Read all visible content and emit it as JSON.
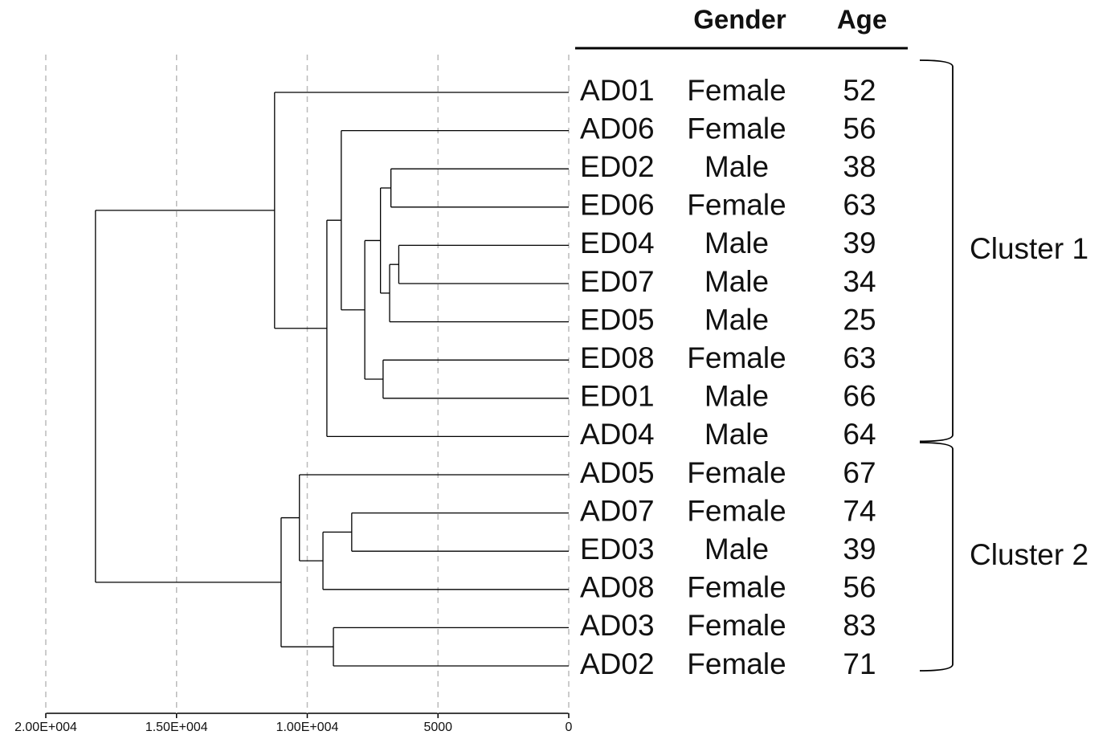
{
  "chart_data": {
    "type": "dendrogram",
    "columns": [
      "Gender",
      "Age"
    ],
    "xlim": [
      20000,
      0
    ],
    "xticks": [
      {
        "value": 20000,
        "label": "2.00E+004"
      },
      {
        "value": 15000,
        "label": "1.50E+004"
      },
      {
        "value": 10000,
        "label": "1.00E+004"
      },
      5000,
      0
    ],
    "grid": true,
    "clusters": [
      "Cluster 1",
      "Cluster 2"
    ],
    "tree": {
      "height": 18100,
      "children": [
        {
          "height": 11250,
          "children": [
            {
              "label": "AD01",
              "gender": "Female",
              "age": 52,
              "color": "#cc6a1f"
            },
            {
              "height": 9250,
              "children": [
                {
                  "height": 8700,
                  "children": [
                    {
                      "label": "AD06",
                      "gender": "Female",
                      "age": 56,
                      "color": "#cc6a1f"
                    },
                    {
                      "height": 7800,
                      "children": [
                        {
                          "height": 7200,
                          "children": [
                            {
                              "height": 6800,
                              "children": [
                                {
                                  "label": "ED02",
                                  "gender": "Male",
                                  "age": 38,
                                  "color": "#1f82d6"
                                },
                                {
                                  "label": "ED06",
                                  "gender": "Female",
                                  "age": 63,
                                  "color": "#1f82d6"
                                }
                              ]
                            },
                            {
                              "height": 6850,
                              "children": [
                                {
                                  "height": 6500,
                                  "children": [
                                    {
                                      "label": "ED04",
                                      "gender": "Male",
                                      "age": 39,
                                      "color": "#1f82d6"
                                    },
                                    {
                                      "label": "ED07",
                                      "gender": "Male",
                                      "age": 34,
                                      "color": "#1f82d6"
                                    }
                                  ]
                                },
                                {
                                  "label": "ED05",
                                  "gender": "Male",
                                  "age": 25,
                                  "color": "#1f82d6"
                                }
                              ]
                            }
                          ]
                        },
                        {
                          "height": 7100,
                          "children": [
                            {
                              "label": "ED08",
                              "gender": "Female",
                              "age": 63,
                              "color": "#1f82d6"
                            },
                            {
                              "label": "ED01",
                              "gender": "Male",
                              "age": 66,
                              "color": "#1f82d6"
                            }
                          ]
                        }
                      ]
                    }
                  ]
                },
                {
                  "label": "AD04",
                  "gender": "Male",
                  "age": 64,
                  "color": "#cc6a1f"
                }
              ]
            }
          ]
        },
        {
          "height": 11000,
          "children": [
            {
              "height": 10300,
              "children": [
                {
                  "label": "AD05",
                  "gender": "Female",
                  "age": 67,
                  "color": "#cc6a1f"
                },
                {
                  "height": 9400,
                  "children": [
                    {
                      "height": 8300,
                      "children": [
                        {
                          "label": "AD07",
                          "gender": "Female",
                          "age": 74,
                          "color": "#cc6a1f"
                        },
                        {
                          "label": "ED03",
                          "gender": "Male",
                          "age": 39,
                          "color": "#1f82d6"
                        }
                      ]
                    },
                    {
                      "label": "AD08",
                      "gender": "Female",
                      "age": 56,
                      "color": "#cc6a1f"
                    }
                  ]
                }
              ]
            },
            {
              "height": 9000,
              "children": [
                {
                  "label": "AD03",
                  "gender": "Female",
                  "age": 83,
                  "color": "#cc6a1f"
                },
                {
                  "label": "AD02",
                  "gender": "Female",
                  "age": 71,
                  "color": "#cc6a1f"
                }
              ]
            }
          ]
        }
      ]
    }
  }
}
